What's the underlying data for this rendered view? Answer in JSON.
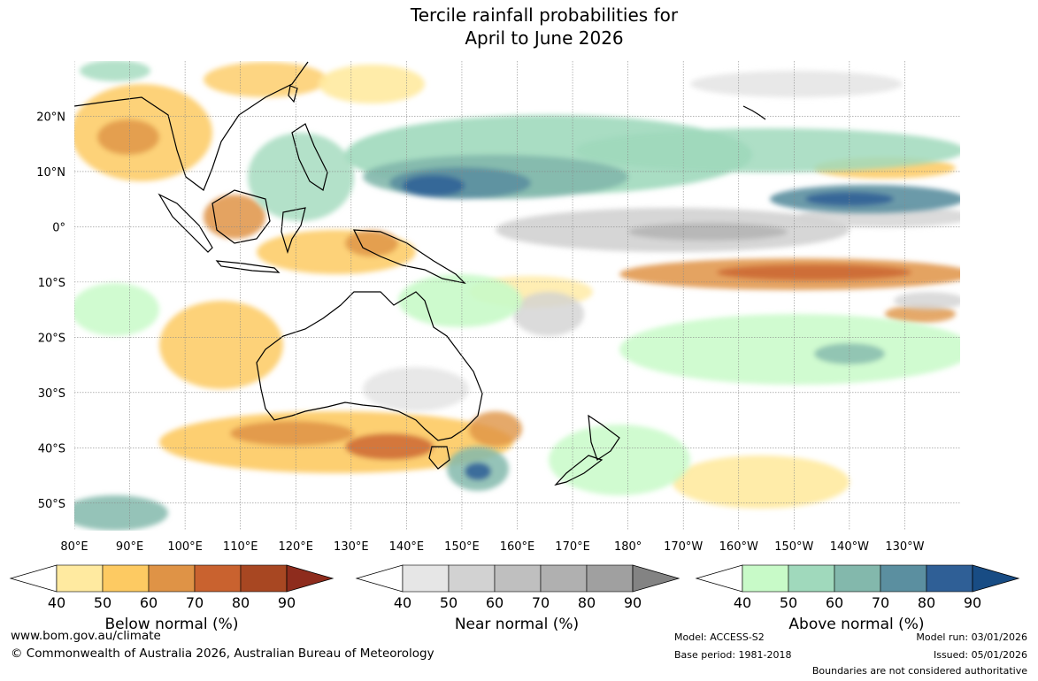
{
  "title": {
    "line1": "Tercile rainfall probabilities for",
    "line2": "April to June 2026"
  },
  "map": {
    "lat_labels": [
      "20°N",
      "10°N",
      "0°",
      "10°S",
      "20°S",
      "30°S",
      "40°S",
      "50°S"
    ],
    "lat_values": [
      20,
      10,
      0,
      -10,
      -20,
      -30,
      -40,
      -50
    ],
    "lon_labels": [
      "80°E",
      "90°E",
      "100°E",
      "110°E",
      "120°E",
      "130°E",
      "140°E",
      "150°E",
      "160°E",
      "170°E",
      "180°",
      "170°W",
      "160°W",
      "150°W",
      "140°W",
      "130°W"
    ],
    "lon_values": [
      80,
      90,
      100,
      110,
      120,
      130,
      140,
      150,
      160,
      170,
      180,
      190,
      200,
      210,
      220,
      230
    ],
    "extent": {
      "lon_min": 80,
      "lon_max": 240,
      "lat_min": -55,
      "lat_max": 30
    }
  },
  "legends": [
    {
      "name": "below",
      "label": "Below normal (%)",
      "ticks": [
        "40",
        "50",
        "60",
        "70",
        "80",
        "90"
      ],
      "colors": [
        "#ffffff",
        "#ffeaa0",
        "#fdca62",
        "#df9346",
        "#c9622f",
        "#a84722",
        "#8e2c1d"
      ]
    },
    {
      "name": "near",
      "label": "Near normal (%)",
      "ticks": [
        "40",
        "50",
        "60",
        "70",
        "80",
        "90"
      ],
      "colors": [
        "#ffffff",
        "#e6e6e6",
        "#d2d2d2",
        "#bfbfbf",
        "#b0b0b0",
        "#a0a0a0",
        "#838383"
      ]
    },
    {
      "name": "above",
      "label": "Above normal (%)",
      "ticks": [
        "40",
        "50",
        "60",
        "70",
        "80",
        "90"
      ],
      "colors": [
        "#ffffff",
        "#c8fac8",
        "#a0d9bc",
        "#83b8ac",
        "#5b8fa0",
        "#2f5f96",
        "#184c84"
      ]
    }
  ],
  "footer": {
    "url": "www.bom.gov.au/climate",
    "copyright": "© Commonwealth of Australia 2026, Australian Bureau of Meteorology",
    "model": "Model: ACCESS-S2",
    "base_period": "Base period: 1981-2018",
    "model_run": "Model run: 03/01/2026",
    "issued": "Issued: 05/01/2026",
    "disclaimer": "Boundaries are not considered authoritative"
  }
}
